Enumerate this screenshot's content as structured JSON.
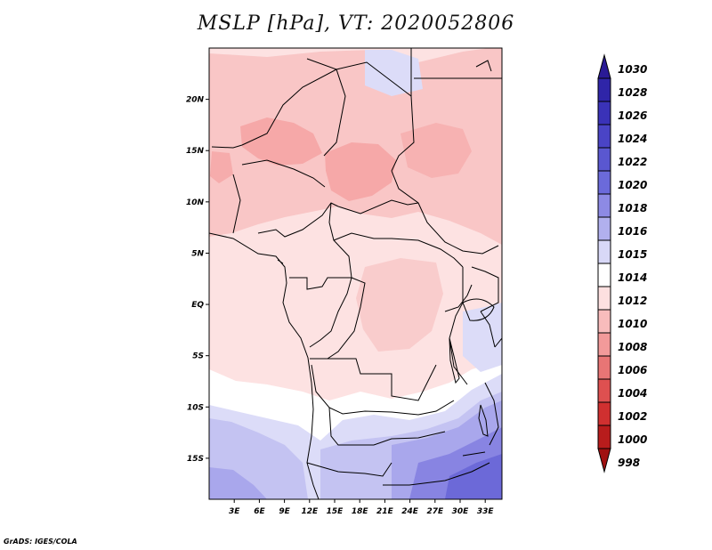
{
  "title": "MSLP [hPa], VT: 2020052806",
  "footer": "GrADS: IGES/COLA",
  "map": {
    "region": "Central Africa",
    "variable": "Mean sea level pressure",
    "units": "hPa",
    "lat_range": [
      -19,
      25
    ],
    "lon_range": [
      0,
      35
    ],
    "x_tick_labels": [
      "3E",
      "6E",
      "9E",
      "12E",
      "15E",
      "18E",
      "21E",
      "24E",
      "27E",
      "30E",
      "33E"
    ],
    "x_tick_lons": [
      3,
      6,
      9,
      12,
      15,
      18,
      21,
      24,
      27,
      30,
      33
    ],
    "y_tick_labels": [
      "20N",
      "15N",
      "10N",
      "5N",
      "EQ",
      "5S",
      "10S",
      "15S"
    ],
    "y_tick_lats": [
      20,
      15,
      10,
      5,
      0,
      -5,
      -10,
      -15
    ]
  },
  "colorbar": {
    "levels": [
      "1030",
      "1028",
      "1026",
      "1024",
      "1022",
      "1020",
      "1018",
      "1016",
      "1015",
      "1014",
      "1012",
      "1010",
      "1008",
      "1006",
      "1004",
      "1002",
      "1000",
      "998"
    ],
    "colors": [
      "#2a1a96",
      "#2f25a8",
      "#3a32b8",
      "#4a44c6",
      "#5a57d0",
      "#6b6ada",
      "#8d8ae4",
      "#b1b0ee",
      "#d8d8f7",
      "#ffffff",
      "#fde0e0",
      "#f8bcbc",
      "#f29a9a",
      "#e87575",
      "#de5050",
      "#d03030",
      "#b81c1c",
      "#a01010"
    ]
  },
  "pressure_fields": {
    "high_south_east": "1022",
    "high_south_west": "1018",
    "low_sahel": "1008",
    "equatorial_basin": "1012"
  }
}
